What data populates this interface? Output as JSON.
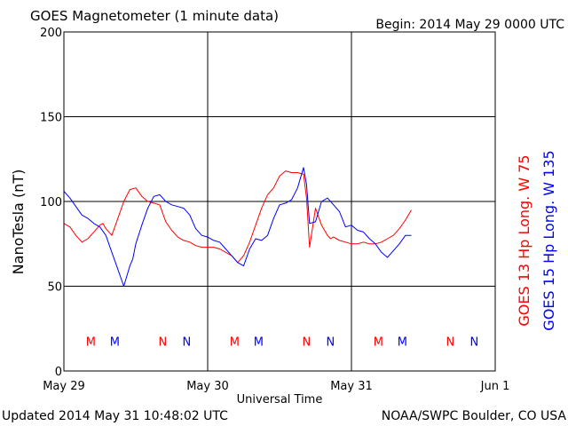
{
  "chart_data": {
    "type": "line",
    "title": "GOES Magnetometer (1 minute data)",
    "begin_label": "Begin:  2014 May 29 0000 UTC",
    "xlabel": "Universal Time",
    "ylabel": "NanoTesla (nT)",
    "updated": "Updated 2014 May 31 10:48:02 UTC",
    "credit": "NOAA/SWPC Boulder, CO USA",
    "ylim": [
      0,
      200
    ],
    "xlim": [
      0,
      72
    ],
    "x_unit": "hours since 2014 May 29 0000 UTC",
    "y_ticks": [
      0,
      50,
      100,
      150,
      200
    ],
    "x_ticks": [
      {
        "x": 0,
        "label": "May 29"
      },
      {
        "x": 24,
        "label": "May 30"
      },
      {
        "x": 48,
        "label": "May 31"
      },
      {
        "x": 72,
        "label": "Jun 1"
      }
    ],
    "grid": true,
    "series": [
      {
        "name": "GOES 13 Hp  Long. W 75",
        "color": "#ff0000",
        "x": [
          0,
          1,
          2,
          3,
          4,
          5,
          6,
          6.5,
          7,
          8,
          9,
          10,
          11,
          12,
          13,
          14,
          15,
          16,
          17,
          18,
          19,
          20,
          21,
          22,
          23,
          24,
          25,
          26,
          27,
          28,
          29,
          30,
          31,
          32,
          33,
          34,
          35,
          36,
          37,
          38,
          39,
          40,
          40.5,
          41,
          42,
          43,
          44,
          44.5,
          45,
          46,
          47,
          48,
          49,
          50,
          51,
          52,
          53,
          54,
          55,
          56,
          57,
          58
        ],
        "y": [
          87,
          85,
          80,
          76,
          78,
          82,
          86,
          87,
          84,
          80,
          90,
          100,
          107,
          108,
          103,
          100,
          99,
          98,
          88,
          83,
          79,
          77,
          76,
          74,
          73,
          73,
          73,
          72,
          70,
          68,
          64,
          68,
          76,
          86,
          96,
          104,
          108,
          115,
          118,
          117,
          117,
          116,
          102,
          73,
          96,
          86,
          80,
          78,
          79,
          77,
          76,
          75,
          75,
          76,
          75,
          75,
          76,
          78,
          80,
          84,
          89,
          95
        ]
      },
      {
        "name": "GOES 15 Hp  Long. W 135",
        "color": "#0000ff",
        "x": [
          0,
          1,
          2,
          3,
          4,
          5,
          6,
          7,
          8,
          9,
          10,
          11,
          11.5,
          12,
          13,
          14,
          15,
          16,
          17,
          18,
          19,
          20,
          21,
          22,
          23,
          24,
          25,
          26,
          27,
          28,
          29,
          30,
          31,
          32,
          33,
          34,
          35,
          36,
          37,
          38,
          39,
          40,
          40.5,
          41,
          42,
          43,
          44,
          45,
          46,
          47,
          48,
          49,
          50,
          51,
          52,
          53,
          54,
          55,
          56,
          57,
          58
        ],
        "y": [
          106,
          102,
          97,
          92,
          90,
          87,
          85,
          80,
          70,
          60,
          50,
          62,
          66,
          75,
          86,
          96,
          103,
          104,
          100,
          98,
          97,
          96,
          92,
          84,
          80,
          79,
          77,
          76,
          72,
          68,
          64,
          62,
          72,
          78,
          77,
          80,
          90,
          98,
          99,
          101,
          108,
          120,
          110,
          87,
          88,
          100,
          102,
          98,
          94,
          85,
          86,
          83,
          82,
          78,
          75,
          70,
          67,
          71,
          75,
          80,
          80
        ]
      }
    ],
    "annotations": [
      {
        "x": 4.5,
        "label": "M",
        "color": "#ff0000"
      },
      {
        "x": 8.5,
        "label": "M",
        "color": "#0000ff"
      },
      {
        "x": 16.5,
        "label": "N",
        "color": "#ff0000"
      },
      {
        "x": 20.5,
        "label": "N",
        "color": "#0000ff"
      },
      {
        "x": 28.5,
        "label": "M",
        "color": "#ff0000"
      },
      {
        "x": 32.5,
        "label": "M",
        "color": "#0000ff"
      },
      {
        "x": 40.5,
        "label": "N",
        "color": "#ff0000"
      },
      {
        "x": 44.5,
        "label": "N",
        "color": "#0000ff"
      },
      {
        "x": 52.5,
        "label": "M",
        "color": "#ff0000"
      },
      {
        "x": 56.5,
        "label": "M",
        "color": "#0000ff"
      },
      {
        "x": 64.5,
        "label": "N",
        "color": "#ff0000"
      },
      {
        "x": 68.5,
        "label": "N",
        "color": "#0000ff"
      }
    ]
  }
}
